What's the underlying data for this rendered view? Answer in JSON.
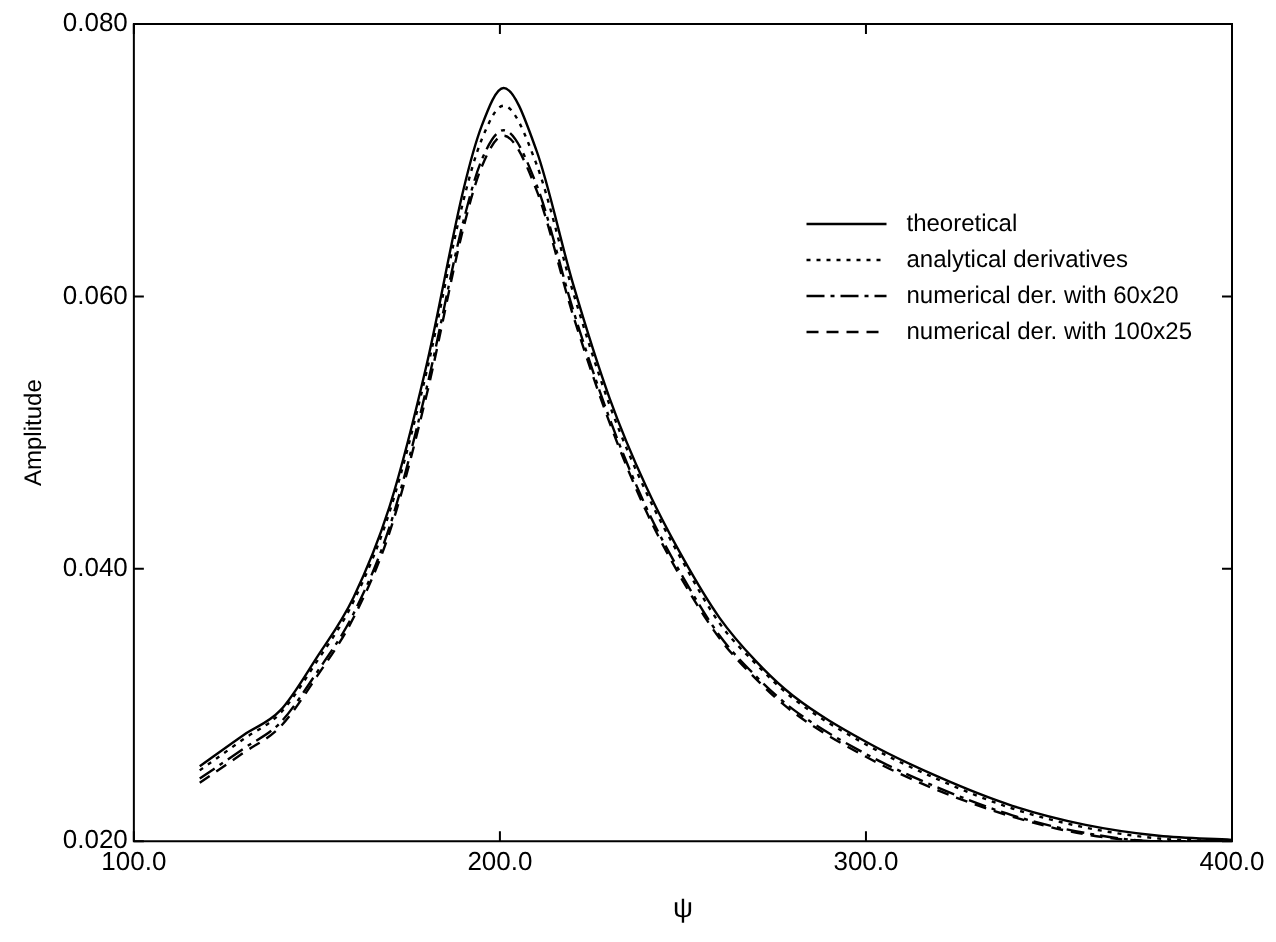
{
  "chart_data": {
    "type": "line",
    "xlabel": "ψ",
    "ylabel": "Amplitude",
    "x": [
      118,
      130,
      140,
      150,
      160,
      170,
      180,
      190,
      195,
      201,
      210,
      220,
      230,
      240,
      250,
      260,
      270,
      280,
      300,
      320,
      340,
      360,
      380,
      400
    ],
    "series": [
      {
        "name": "theoretical",
        "color": "#000000",
        "line_style": "solid",
        "values": [
          0.0255,
          0.0278,
          0.0296,
          0.0335,
          0.0379,
          0.0447,
          0.055,
          0.0678,
          0.0725,
          0.0753,
          0.0707,
          0.0609,
          0.0525,
          0.046,
          0.0408,
          0.0364,
          0.0332,
          0.0307,
          0.0273,
          0.0247,
          0.0226,
          0.0212,
          0.0204,
          0.0201
        ]
      },
      {
        "name": "analytical derivatives",
        "color": "#000000",
        "line_style": "dotted",
        "values": [
          0.0252,
          0.0275,
          0.0294,
          0.0332,
          0.0376,
          0.0443,
          0.0545,
          0.067,
          0.0715,
          0.074,
          0.0697,
          0.0603,
          0.052,
          0.0456,
          0.0405,
          0.036,
          0.033,
          0.0305,
          0.0271,
          0.0245,
          0.0224,
          0.021,
          0.0202,
          0.02
        ]
      },
      {
        "name": "numerical der. with 60x20",
        "color": "#000000",
        "line_style": "dashdot",
        "values": [
          0.0246,
          0.0268,
          0.0287,
          0.0324,
          0.0367,
          0.0432,
          0.0533,
          0.0655,
          0.07,
          0.0722,
          0.0682,
          0.059,
          0.051,
          0.0445,
          0.0394,
          0.0351,
          0.0321,
          0.0297,
          0.0264,
          0.0239,
          0.0219,
          0.0206,
          0.02,
          0.02
        ]
      },
      {
        "name": "numerical der. with 100x25",
        "color": "#000000",
        "line_style": "dashed",
        "values": [
          0.0243,
          0.0265,
          0.0284,
          0.0321,
          0.0364,
          0.0428,
          0.0528,
          0.065,
          0.0695,
          0.0718,
          0.0678,
          0.0586,
          0.0507,
          0.0442,
          0.0391,
          0.0349,
          0.0319,
          0.0295,
          0.0262,
          0.0237,
          0.0218,
          0.0205,
          0.02,
          0.02
        ]
      }
    ],
    "xlim": [
      100,
      400
    ],
    "ylim": [
      0.02,
      0.08
    ],
    "xticks": [
      {
        "value": 100,
        "label": "100.0"
      },
      {
        "value": 200,
        "label": "200.0"
      },
      {
        "value": 300,
        "label": "300.0"
      },
      {
        "value": 400,
        "label": "400.0"
      }
    ],
    "yticks": [
      {
        "value": 0.02,
        "label": "0.020"
      },
      {
        "value": 0.04,
        "label": "0.040"
      },
      {
        "value": 0.06,
        "label": "0.060"
      },
      {
        "value": 0.08,
        "label": "0.080"
      }
    ],
    "grid": false,
    "legend": "top right",
    "marker": "none"
  }
}
